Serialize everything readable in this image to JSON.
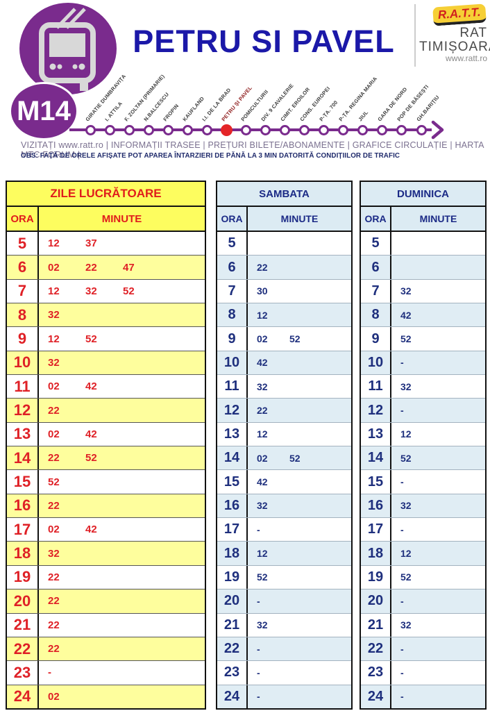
{
  "route": {
    "badge": "M14",
    "title": "PETRU SI PAVEL",
    "links_line": "VIZITAȚI www.ratt.ro | INFORMAȚII TRASEE | PREȚURI BILETE/ABONAMENTE | GRAFICE CIRCULAȚIE | HARTA MTC   FORUM  |",
    "obs_line": "OBS: FAȚĂ DE ORELE AFIȘATE POT APAREA ÎNTARZIERI DE PĂNĂ LA 3 MIN DATORITĂ CONDIȚIILOR DE TRAFIC",
    "stops": [
      {
        "name": "GIRATIE DUMBRAVIȚA",
        "highlight": false
      },
      {
        "name": "I. ATTILA",
        "highlight": false
      },
      {
        "name": "F. ZOLTAN (PRIMARIE)",
        "highlight": false
      },
      {
        "name": "N.BALCESCU",
        "highlight": false
      },
      {
        "name": "FROPIN",
        "highlight": false
      },
      {
        "name": "KAUFLAND",
        "highlight": false
      },
      {
        "name": "I.I. DE LA BRAD",
        "highlight": false
      },
      {
        "name": "PETRU ȘI PAVEL",
        "highlight": true
      },
      {
        "name": "POMICULTURII",
        "highlight": false
      },
      {
        "name": "DIV. 9 CAVALERIE",
        "highlight": false
      },
      {
        "name": "CIMIT. EROILOR",
        "highlight": false
      },
      {
        "name": "CONS. EUROPEI",
        "highlight": false
      },
      {
        "name": "P-ȚA. 700",
        "highlight": false
      },
      {
        "name": "P-ȚA. REGINA MARIA",
        "highlight": false
      },
      {
        "name": "JIUL",
        "highlight": false
      },
      {
        "name": "GARA DE NORD",
        "highlight": false
      },
      {
        "name": "POP DE BĂSEȘTI",
        "highlight": false
      },
      {
        "name": "GH.BARIȚIU",
        "highlight": false
      }
    ]
  },
  "logo": {
    "badge_text": "R.A.T.T.",
    "line1": "RAT",
    "line2": "TIMIȘOARA",
    "url": "www.ratt.ro"
  },
  "icons": {
    "vehicle": "trolleybus-icon",
    "arrow": "route-arrow-icon"
  },
  "colors": {
    "purple": "#7a2b8d",
    "title_blue": "#1b18a8",
    "red_accent": "#e02125",
    "navy_text": "#1e2f7d",
    "yellow_header": "#fdfd5f",
    "yellow_row": "#fefe9d",
    "blue_header": "#dcebf3",
    "blue_row": "#e0edf4",
    "highlight_stop_red": "#e42528"
  },
  "tables": [
    {
      "title": "ZILE LUCRĂTOARE",
      "theme": "yellow",
      "col_hour": "ORA",
      "col_minutes": "MINUTE",
      "rows": [
        {
          "hour": "5",
          "minutes": [
            "12",
            "37"
          ]
        },
        {
          "hour": "6",
          "minutes": [
            "02",
            "22",
            "47"
          ]
        },
        {
          "hour": "7",
          "minutes": [
            "12",
            "32",
            "52"
          ]
        },
        {
          "hour": "8",
          "minutes": [
            "32"
          ]
        },
        {
          "hour": "9",
          "minutes": [
            "12",
            "52"
          ]
        },
        {
          "hour": "10",
          "minutes": [
            "32"
          ]
        },
        {
          "hour": "11",
          "minutes": [
            "02",
            "42"
          ]
        },
        {
          "hour": "12",
          "minutes": [
            "22"
          ]
        },
        {
          "hour": "13",
          "minutes": [
            "02",
            "42"
          ]
        },
        {
          "hour": "14",
          "minutes": [
            "22",
            "52"
          ]
        },
        {
          "hour": "15",
          "minutes": [
            "52"
          ]
        },
        {
          "hour": "16",
          "minutes": [
            "22"
          ]
        },
        {
          "hour": "17",
          "minutes": [
            "02",
            "42"
          ]
        },
        {
          "hour": "18",
          "minutes": [
            "32"
          ]
        },
        {
          "hour": "19",
          "minutes": [
            "22"
          ]
        },
        {
          "hour": "20",
          "minutes": [
            "22"
          ]
        },
        {
          "hour": "21",
          "minutes": [
            "22"
          ]
        },
        {
          "hour": "22",
          "minutes": [
            "22"
          ]
        },
        {
          "hour": "23",
          "minutes": [
            "-"
          ]
        },
        {
          "hour": "24",
          "minutes": [
            "02"
          ]
        }
      ]
    },
    {
      "title": "SAMBATA",
      "theme": "blue",
      "col_hour": "ORA",
      "col_minutes": "MINUTE",
      "rows": [
        {
          "hour": "5",
          "minutes": []
        },
        {
          "hour": "6",
          "minutes": [
            "22"
          ]
        },
        {
          "hour": "7",
          "minutes": [
            "30"
          ]
        },
        {
          "hour": "8",
          "minutes": [
            "12"
          ]
        },
        {
          "hour": "9",
          "minutes": [
            "02",
            "52"
          ]
        },
        {
          "hour": "10",
          "minutes": [
            "42"
          ]
        },
        {
          "hour": "11",
          "minutes": [
            "32"
          ]
        },
        {
          "hour": "12",
          "minutes": [
            "22"
          ]
        },
        {
          "hour": "13",
          "minutes": [
            "12"
          ]
        },
        {
          "hour": "14",
          "minutes": [
            "02",
            "52"
          ]
        },
        {
          "hour": "15",
          "minutes": [
            "42"
          ]
        },
        {
          "hour": "16",
          "minutes": [
            "32"
          ]
        },
        {
          "hour": "17",
          "minutes": [
            "-"
          ]
        },
        {
          "hour": "18",
          "minutes": [
            "12"
          ]
        },
        {
          "hour": "19",
          "minutes": [
            "52"
          ]
        },
        {
          "hour": "20",
          "minutes": [
            "-"
          ]
        },
        {
          "hour": "21",
          "minutes": [
            "32"
          ]
        },
        {
          "hour": "22",
          "minutes": [
            "-"
          ]
        },
        {
          "hour": "23",
          "minutes": [
            "-"
          ]
        },
        {
          "hour": "24",
          "minutes": [
            "-"
          ]
        }
      ]
    },
    {
      "title": "DUMINICA",
      "theme": "blue",
      "col_hour": "ORA",
      "col_minutes": "MINUTE",
      "rows": [
        {
          "hour": "5",
          "minutes": []
        },
        {
          "hour": "6",
          "minutes": []
        },
        {
          "hour": "7",
          "minutes": [
            "32"
          ]
        },
        {
          "hour": "8",
          "minutes": [
            "42"
          ]
        },
        {
          "hour": "9",
          "minutes": [
            "52"
          ]
        },
        {
          "hour": "10",
          "minutes": [
            "-"
          ]
        },
        {
          "hour": "11",
          "minutes": [
            "32"
          ]
        },
        {
          "hour": "12",
          "minutes": [
            "-"
          ]
        },
        {
          "hour": "13",
          "minutes": [
            "12"
          ]
        },
        {
          "hour": "14",
          "minutes": [
            "52"
          ]
        },
        {
          "hour": "15",
          "minutes": [
            "-"
          ]
        },
        {
          "hour": "16",
          "minutes": [
            "32"
          ]
        },
        {
          "hour": "17",
          "minutes": [
            "-"
          ]
        },
        {
          "hour": "18",
          "minutes": [
            "12"
          ]
        },
        {
          "hour": "19",
          "minutes": [
            "52"
          ]
        },
        {
          "hour": "20",
          "minutes": [
            "-"
          ]
        },
        {
          "hour": "21",
          "minutes": [
            "32"
          ]
        },
        {
          "hour": "22",
          "minutes": [
            "-"
          ]
        },
        {
          "hour": "23",
          "minutes": [
            "-"
          ]
        },
        {
          "hour": "24",
          "minutes": [
            "-"
          ]
        }
      ]
    }
  ]
}
